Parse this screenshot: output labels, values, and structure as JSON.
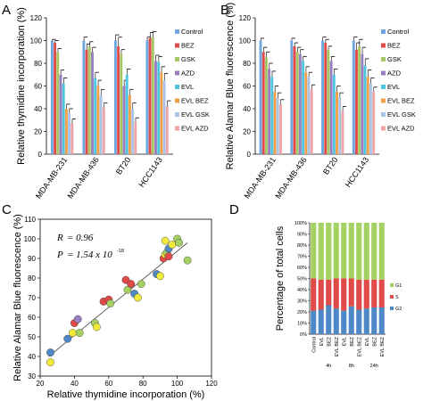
{
  "panels": {
    "A": "A",
    "B": "B",
    "C": "C",
    "D": "D"
  },
  "colors": {
    "Control": "#6fa7de",
    "BEZ": "#e04a49",
    "GSK": "#a5c765",
    "AZD": "#9a7fc0",
    "EVL": "#4fc5e0",
    "EVL BEZ": "#f2a04c",
    "EVL GSK": "#a9c4e6",
    "EVL AZD": "#eea5a7",
    "G1": "#a5d062",
    "S": "#e04a49",
    "G2": "#4e88c7"
  },
  "chart_data": [
    {
      "panel": "A",
      "type": "bar",
      "ylabel": "Relative thymidine incorporation (%)",
      "ylim": [
        0,
        120
      ],
      "yticks": [
        0,
        20,
        40,
        60,
        80,
        100,
        120
      ],
      "categories": [
        "MDA-MB-231",
        "MDA-MB-436",
        "BT20",
        "HCC1143"
      ],
      "legend_position": "right",
      "series": [
        {
          "name": "Control",
          "values": [
            100,
            100,
            100,
            100
          ],
          "errors": [
            1,
            3,
            5,
            3
          ]
        },
        {
          "name": "BEZ",
          "values": [
            98,
            92,
            95,
            102
          ],
          "errors": [
            2,
            5,
            8,
            5
          ]
        },
        {
          "name": "GSK",
          "values": [
            90,
            95,
            88,
            103
          ],
          "errors": [
            3,
            4,
            4,
            5
          ]
        },
        {
          "name": "AZD",
          "values": [
            70,
            90,
            60,
            82
          ],
          "errors": [
            4,
            4,
            5,
            5
          ]
        },
        {
          "name": "EVL",
          "values": [
            62,
            67,
            70,
            81
          ],
          "errors": [
            5,
            5,
            5,
            5
          ]
        },
        {
          "name": "EVL BEZ",
          "values": [
            40,
            60,
            52,
            72
          ],
          "errors": [
            4,
            5,
            5,
            5
          ]
        },
        {
          "name": "EVL GSK",
          "values": [
            36,
            52,
            40,
            65
          ],
          "errors": [
            4,
            5,
            5,
            6
          ]
        },
        {
          "name": "EVL AZD",
          "values": [
            27,
            41,
            28,
            42
          ],
          "errors": [
            4,
            4,
            4,
            5
          ]
        }
      ]
    },
    {
      "panel": "B",
      "type": "bar",
      "ylabel": "Relative Alamar Blue fluorescence (%)",
      "ylim": [
        0,
        120
      ],
      "yticks": [
        0,
        20,
        40,
        60,
        80,
        100,
        120
      ],
      "categories": [
        "MDA-MB-231",
        "MDA-MB-436",
        "BT20",
        "HCC1143"
      ],
      "legend_position": "right",
      "series": [
        {
          "name": "Control",
          "values": [
            100,
            100,
            100,
            100
          ],
          "errors": [
            2,
            2,
            3,
            3
          ]
        },
        {
          "name": "BEZ",
          "values": [
            90,
            95,
            98,
            92
          ],
          "errors": [
            4,
            3,
            3,
            6
          ]
        },
        {
          "name": "GSK",
          "values": [
            85,
            90,
            92,
            95
          ],
          "errors": [
            5,
            4,
            3,
            6
          ]
        },
        {
          "name": "AZD",
          "values": [
            75,
            88,
            82,
            88
          ],
          "errors": [
            5,
            4,
            4,
            6
          ]
        },
        {
          "name": "EVL",
          "values": [
            68,
            82,
            70,
            78
          ],
          "errors": [
            5,
            4,
            5,
            6
          ]
        },
        {
          "name": "EVL BEZ",
          "values": [
            55,
            72,
            55,
            68
          ],
          "errors": [
            5,
            5,
            5,
            6
          ]
        },
        {
          "name": "EVL GSK",
          "values": [
            49,
            68,
            50,
            62
          ],
          "errors": [
            5,
            4,
            4,
            5
          ]
        },
        {
          "name": "EVL AZD",
          "values": [
            44,
            57,
            38,
            55
          ],
          "errors": [
            4,
            4,
            4,
            4
          ]
        }
      ]
    },
    {
      "panel": "C",
      "type": "scatter",
      "xlabel": "Relative thymidine incorporation (%)",
      "ylabel": "Relative Alamar Blue fluorescence (%)",
      "xlim": [
        20,
        120
      ],
      "ylim": [
        30,
        110
      ],
      "xticks": [
        20,
        40,
        60,
        80,
        100,
        120
      ],
      "yticks": [
        30,
        40,
        50,
        60,
        70,
        80,
        90,
        100,
        110
      ],
      "annotation": {
        "r_label": "R",
        "r_value": "= 0.96",
        "p_label": "P",
        "p_value": "= 1.54 x 10",
        "p_exp": "-18"
      },
      "fit_line": {
        "x": [
          25,
          106
        ],
        "y": [
          40,
          98
        ]
      },
      "points": [
        {
          "x": 26,
          "y": 42,
          "color": "#4e88c7"
        },
        {
          "x": 26,
          "y": 37,
          "color": "#f2ea3b"
        },
        {
          "x": 36,
          "y": 49,
          "color": "#4e88c7"
        },
        {
          "x": 39,
          "y": 52,
          "color": "#f2ea3b"
        },
        {
          "x": 40,
          "y": 57,
          "color": "#e04a49"
        },
        {
          "x": 42,
          "y": 59,
          "color": "#9a7fc0"
        },
        {
          "x": 43,
          "y": 52,
          "color": "#a5d062"
        },
        {
          "x": 52,
          "y": 57,
          "color": "#a5d062"
        },
        {
          "x": 53,
          "y": 55,
          "color": "#f2ea3b"
        },
        {
          "x": 57,
          "y": 68,
          "color": "#e04a49"
        },
        {
          "x": 60,
          "y": 69,
          "color": "#e04a49"
        },
        {
          "x": 61,
          "y": 67,
          "color": "#a5d062"
        },
        {
          "x": 70,
          "y": 79,
          "color": "#e04a49"
        },
        {
          "x": 71,
          "y": 74,
          "color": "#a5d062"
        },
        {
          "x": 73,
          "y": 77,
          "color": "#e04a49"
        },
        {
          "x": 75,
          "y": 72,
          "color": "#4e88c7"
        },
        {
          "x": 77,
          "y": 70,
          "color": "#f2ea3b"
        },
        {
          "x": 79,
          "y": 77,
          "color": "#a5d062"
        },
        {
          "x": 88,
          "y": 82,
          "color": "#4e88c7"
        },
        {
          "x": 90,
          "y": 81,
          "color": "#f2ea3b"
        },
        {
          "x": 92,
          "y": 90,
          "color": "#e04a49"
        },
        {
          "x": 93,
          "y": 92,
          "color": "#f2ea3b"
        },
        {
          "x": 94,
          "y": 93,
          "color": "#a5d062"
        },
        {
          "x": 95,
          "y": 91,
          "color": "#e04a49"
        },
        {
          "x": 95,
          "y": 95,
          "color": "#4e88c7"
        },
        {
          "x": 93,
          "y": 99,
          "color": "#f2ea3b"
        },
        {
          "x": 97,
          "y": 97,
          "color": "#f2ea3b"
        },
        {
          "x": 100,
          "y": 100,
          "color": "#a5d062"
        },
        {
          "x": 101,
          "y": 98,
          "color": "#a5d062"
        },
        {
          "x": 106,
          "y": 89,
          "color": "#a5d062"
        }
      ]
    },
    {
      "panel": "D",
      "type": "bar",
      "stacked": true,
      "ylabel": "Percentage of total cells",
      "ylim": [
        0,
        100
      ],
      "yticks": [
        "0%",
        "10%",
        "20%",
        "30%",
        "40%",
        "50%",
        "60%",
        "70%",
        "80%",
        "90%",
        "100%"
      ],
      "categories": [
        "Control",
        "EVL",
        "BEZ",
        "EVL BEZ",
        "EVL",
        "BEZ",
        "EVL BEZ",
        "EVL",
        "BEZ",
        "EVL BEZ"
      ],
      "group_labels": [
        "4h",
        "8h",
        "24h"
      ],
      "series": [
        {
          "name": "G2",
          "values": [
            21,
            22,
            26,
            23,
            21,
            25,
            22,
            23,
            24,
            24
          ]
        },
        {
          "name": "S",
          "values": [
            29,
            27,
            23,
            27,
            29,
            25,
            27,
            26,
            25,
            25
          ]
        },
        {
          "name": "G1",
          "values": [
            50,
            51,
            51,
            50,
            50,
            50,
            51,
            51,
            51,
            51
          ]
        }
      ],
      "legend_order": [
        "G1",
        "S",
        "G2"
      ]
    }
  ]
}
